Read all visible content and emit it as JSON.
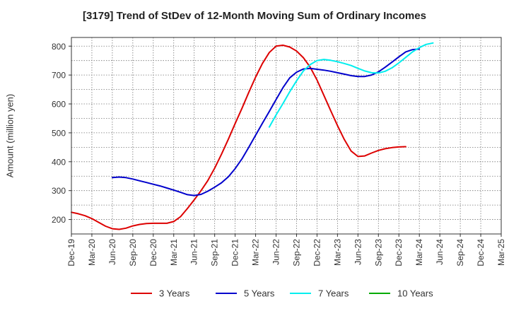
{
  "chart_data": {
    "type": "line",
    "title": "[3179]  Trend of StDev of 12-Month Moving Sum of Ordinary Incomes",
    "xlabel": "",
    "ylabel": "Amount (million yen)",
    "x_tick_labels": [
      "Dec-19",
      "Mar-20",
      "Jun-20",
      "Sep-20",
      "Dec-20",
      "Mar-21",
      "Jun-21",
      "Sep-21",
      "Dec-21",
      "Mar-22",
      "Jun-22",
      "Sep-22",
      "Dec-22",
      "Mar-23",
      "Jun-23",
      "Sep-23",
      "Dec-23",
      "Mar-24",
      "Jun-24",
      "Sep-24",
      "Dec-24",
      "Mar-25"
    ],
    "y_ticks": [
      200,
      300,
      400,
      500,
      600,
      700,
      800
    ],
    "ylim": [
      150,
      830
    ],
    "grid": true,
    "legend_position": "bottom",
    "series": [
      {
        "name": "3 Years",
        "color": "#dd0000",
        "start_index": 0,
        "values": [
          225,
          220,
          213,
          203,
          190,
          177,
          168,
          166,
          170,
          178,
          183,
          186,
          187,
          187,
          187,
          193,
          210,
          238,
          268,
          300,
          335,
          378,
          426,
          478,
          532,
          585,
          640,
          693,
          740,
          778,
          800,
          803,
          797,
          783,
          760,
          727,
          683,
          630,
          577,
          525,
          477,
          437,
          418,
          420,
          430,
          439,
          445,
          449,
          451,
          452
        ]
      },
      {
        "name": "5 Years",
        "color": "#0000cc",
        "start_index": 6,
        "values": [
          345,
          347,
          345,
          340,
          334,
          328,
          322,
          316,
          309,
          302,
          294,
          286,
          283,
          287,
          298,
          312,
          327,
          348,
          376,
          410,
          450,
          492,
          533,
          574,
          615,
          656,
          690,
          710,
          721,
          723,
          720,
          717,
          713,
          708,
          703,
          698,
          695,
          695,
          700,
          711,
          727,
          745,
          763,
          780,
          788,
          790
        ]
      },
      {
        "name": "7 Years",
        "color": "#00eeee",
        "start_index": 29,
        "values": [
          520,
          562,
          601,
          642,
          680,
          714,
          736,
          750,
          754,
          751,
          746,
          740,
          733,
          723,
          714,
          708,
          707,
          713,
          725,
          742,
          761,
          780,
          795,
          806,
          811
        ]
      },
      {
        "name": "10 Years",
        "color": "#00aa00",
        "start_index": 0,
        "values": []
      }
    ]
  }
}
